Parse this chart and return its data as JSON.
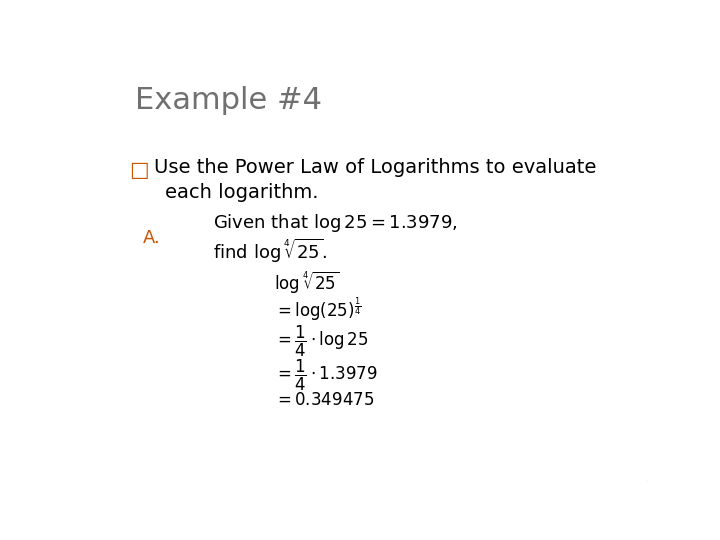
{
  "title": "Example #4",
  "title_color": "#707070",
  "title_fontsize": 22,
  "bullet_color": "#CC5500",
  "label_A": "A.",
  "label_A_color": "#CC5500",
  "label_A_fontsize": 13,
  "bg_color": "#ffffff",
  "border_color": "#cccccc"
}
